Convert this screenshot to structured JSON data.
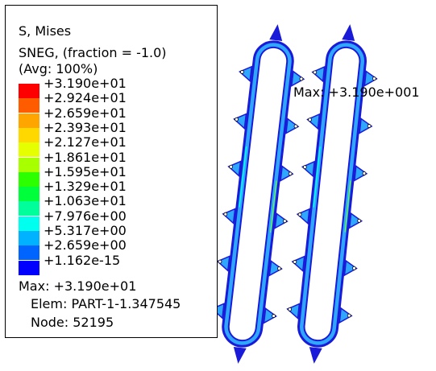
{
  "legend": {
    "title_lines": [
      "S, Mises",
      "SNEG, (fraction = -1.0)",
      "(Avg: 100%)"
    ],
    "entries": [
      {
        "label": "+3.190e+01",
        "color": "#ff0000"
      },
      {
        "label": "+2.924e+01",
        "color": "#ff5c00"
      },
      {
        "label": "+2.659e+01",
        "color": "#ffa500"
      },
      {
        "label": "+2.393e+01",
        "color": "#ffd800"
      },
      {
        "label": "+2.127e+01",
        "color": "#e5ff00"
      },
      {
        "label": "+1.861e+01",
        "color": "#a8ff00"
      },
      {
        "label": "+1.595e+01",
        "color": "#2cff00"
      },
      {
        "label": "+1.329e+01",
        "color": "#00ff3b"
      },
      {
        "label": "+1.063e+01",
        "color": "#00ff9a"
      },
      {
        "label": "+7.976e+00",
        "color": "#00ffee"
      },
      {
        "label": "+5.317e+00",
        "color": "#00b2ff"
      },
      {
        "label": "+2.659e+00",
        "color": "#0064ff"
      },
      {
        "label": "+1.162e-15",
        "color": "#0000ff"
      }
    ],
    "max_line": "Max: +3.190e+01",
    "elem_line": "Elem: PART-1-1.347545",
    "node_line": "Node: 52195"
  },
  "viewport": {
    "max_label": "Max: +3.190e+001",
    "outline_color": "#1a1ad9",
    "accent_colors": [
      "#2fa6ff",
      "#00ffee",
      "#6cff2c"
    ]
  }
}
